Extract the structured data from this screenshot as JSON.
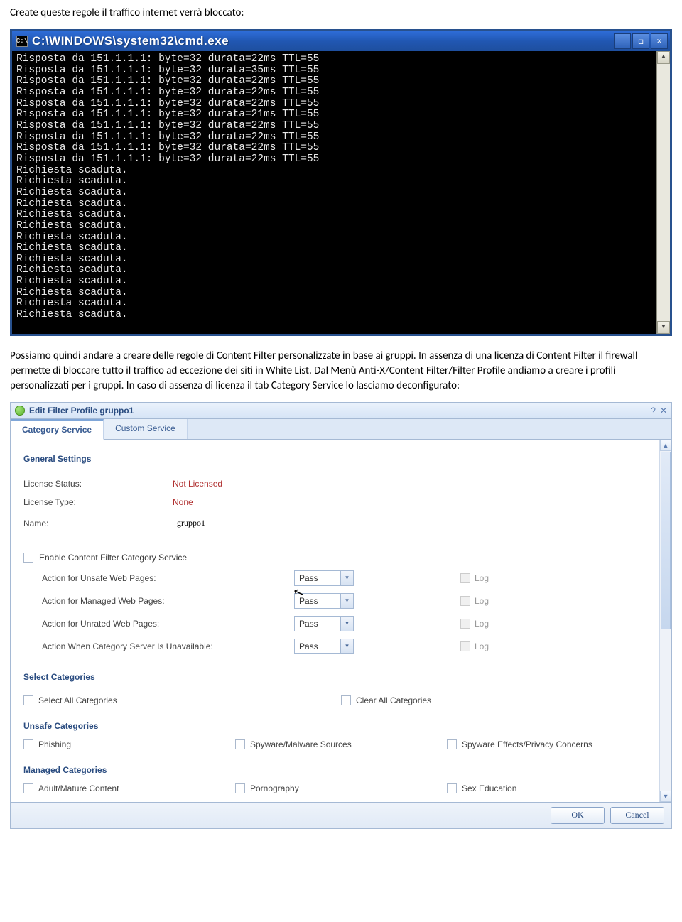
{
  "doc": {
    "para1": "Create queste regole il traffico internet verrà bloccato:",
    "para2": "Possiamo quindi andare a creare delle regole di Content Filter personalizzate in base ai gruppi. In assenza di una licenza di Content Filter il firewall permette di bloccare tutto il traffico ad eccezione dei siti in White List. Dal Menù Anti-X/Content Filter/Filter Profile andiamo a creare i profili personalizzati per i gruppi. In caso di assenza di licenza il tab Category Service lo lasciamo deconfigurato:"
  },
  "cmd": {
    "icon_text": "C:\\",
    "title": "C:\\WINDOWS\\system32\\cmd.exe",
    "min": "_",
    "max": "□",
    "close": "×",
    "lines": [
      "Risposta da 151.1.1.1: byte=32 durata=22ms TTL=55",
      "Risposta da 151.1.1.1: byte=32 durata=35ms TTL=55",
      "Risposta da 151.1.1.1: byte=32 durata=22ms TTL=55",
      "Risposta da 151.1.1.1: byte=32 durata=22ms TTL=55",
      "Risposta da 151.1.1.1: byte=32 durata=22ms TTL=55",
      "Risposta da 151.1.1.1: byte=32 durata=21ms TTL=55",
      "Risposta da 151.1.1.1: byte=32 durata=22ms TTL=55",
      "Risposta da 151.1.1.1: byte=32 durata=22ms TTL=55",
      "Risposta da 151.1.1.1: byte=32 durata=22ms TTL=55",
      "Risposta da 151.1.1.1: byte=32 durata=22ms TTL=55",
      "Richiesta scaduta.",
      "Richiesta scaduta.",
      "Richiesta scaduta.",
      "Richiesta scaduta.",
      "Richiesta scaduta.",
      "Richiesta scaduta.",
      "Richiesta scaduta.",
      "Richiesta scaduta.",
      "Richiesta scaduta.",
      "Richiesta scaduta.",
      "Richiesta scaduta.",
      "Richiesta scaduta.",
      "Richiesta scaduta.",
      "Richiesta scaduta."
    ],
    "scroll_up": "▲",
    "scroll_down": "▼"
  },
  "efp": {
    "title": "Edit Filter Profile gruppo1",
    "help": "?",
    "close": "✕",
    "tabs": {
      "cat": "Category Service",
      "custom": "Custom Service"
    },
    "general_head": "General Settings",
    "license_status_lbl": "License Status:",
    "license_status_val": "Not Licensed",
    "license_type_lbl": "License Type:",
    "license_type_val": "None",
    "name_lbl": "Name:",
    "name_val": "gruppo1",
    "enable_cat": "Enable Content Filter Category Service",
    "actions": [
      {
        "label": "Action for Unsafe Web Pages:",
        "value": "Pass",
        "log": "Log"
      },
      {
        "label": "Action for Managed Web Pages:",
        "value": "Pass",
        "log": "Log"
      },
      {
        "label": "Action for Unrated Web Pages:",
        "value": "Pass",
        "log": "Log"
      },
      {
        "label": "Action When Category Server Is Unavailable:",
        "value": "Pass",
        "log": "Log"
      }
    ],
    "select_head": "Select Categories",
    "select_all": "Select All Categories",
    "clear_all": "Clear All Categories",
    "unsafe_head": "Unsafe Categories",
    "unsafe": [
      "Phishing",
      "Spyware/Malware Sources",
      "Spyware Effects/Privacy Concerns"
    ],
    "managed_head": "Managed Categories",
    "managed": [
      "Adult/Mature Content",
      "Pornography",
      "Sex Education"
    ],
    "ok": "OK",
    "cancel": "Cancel",
    "scroll_up": "▲",
    "scroll_down": "▼",
    "chevron": "▾"
  }
}
